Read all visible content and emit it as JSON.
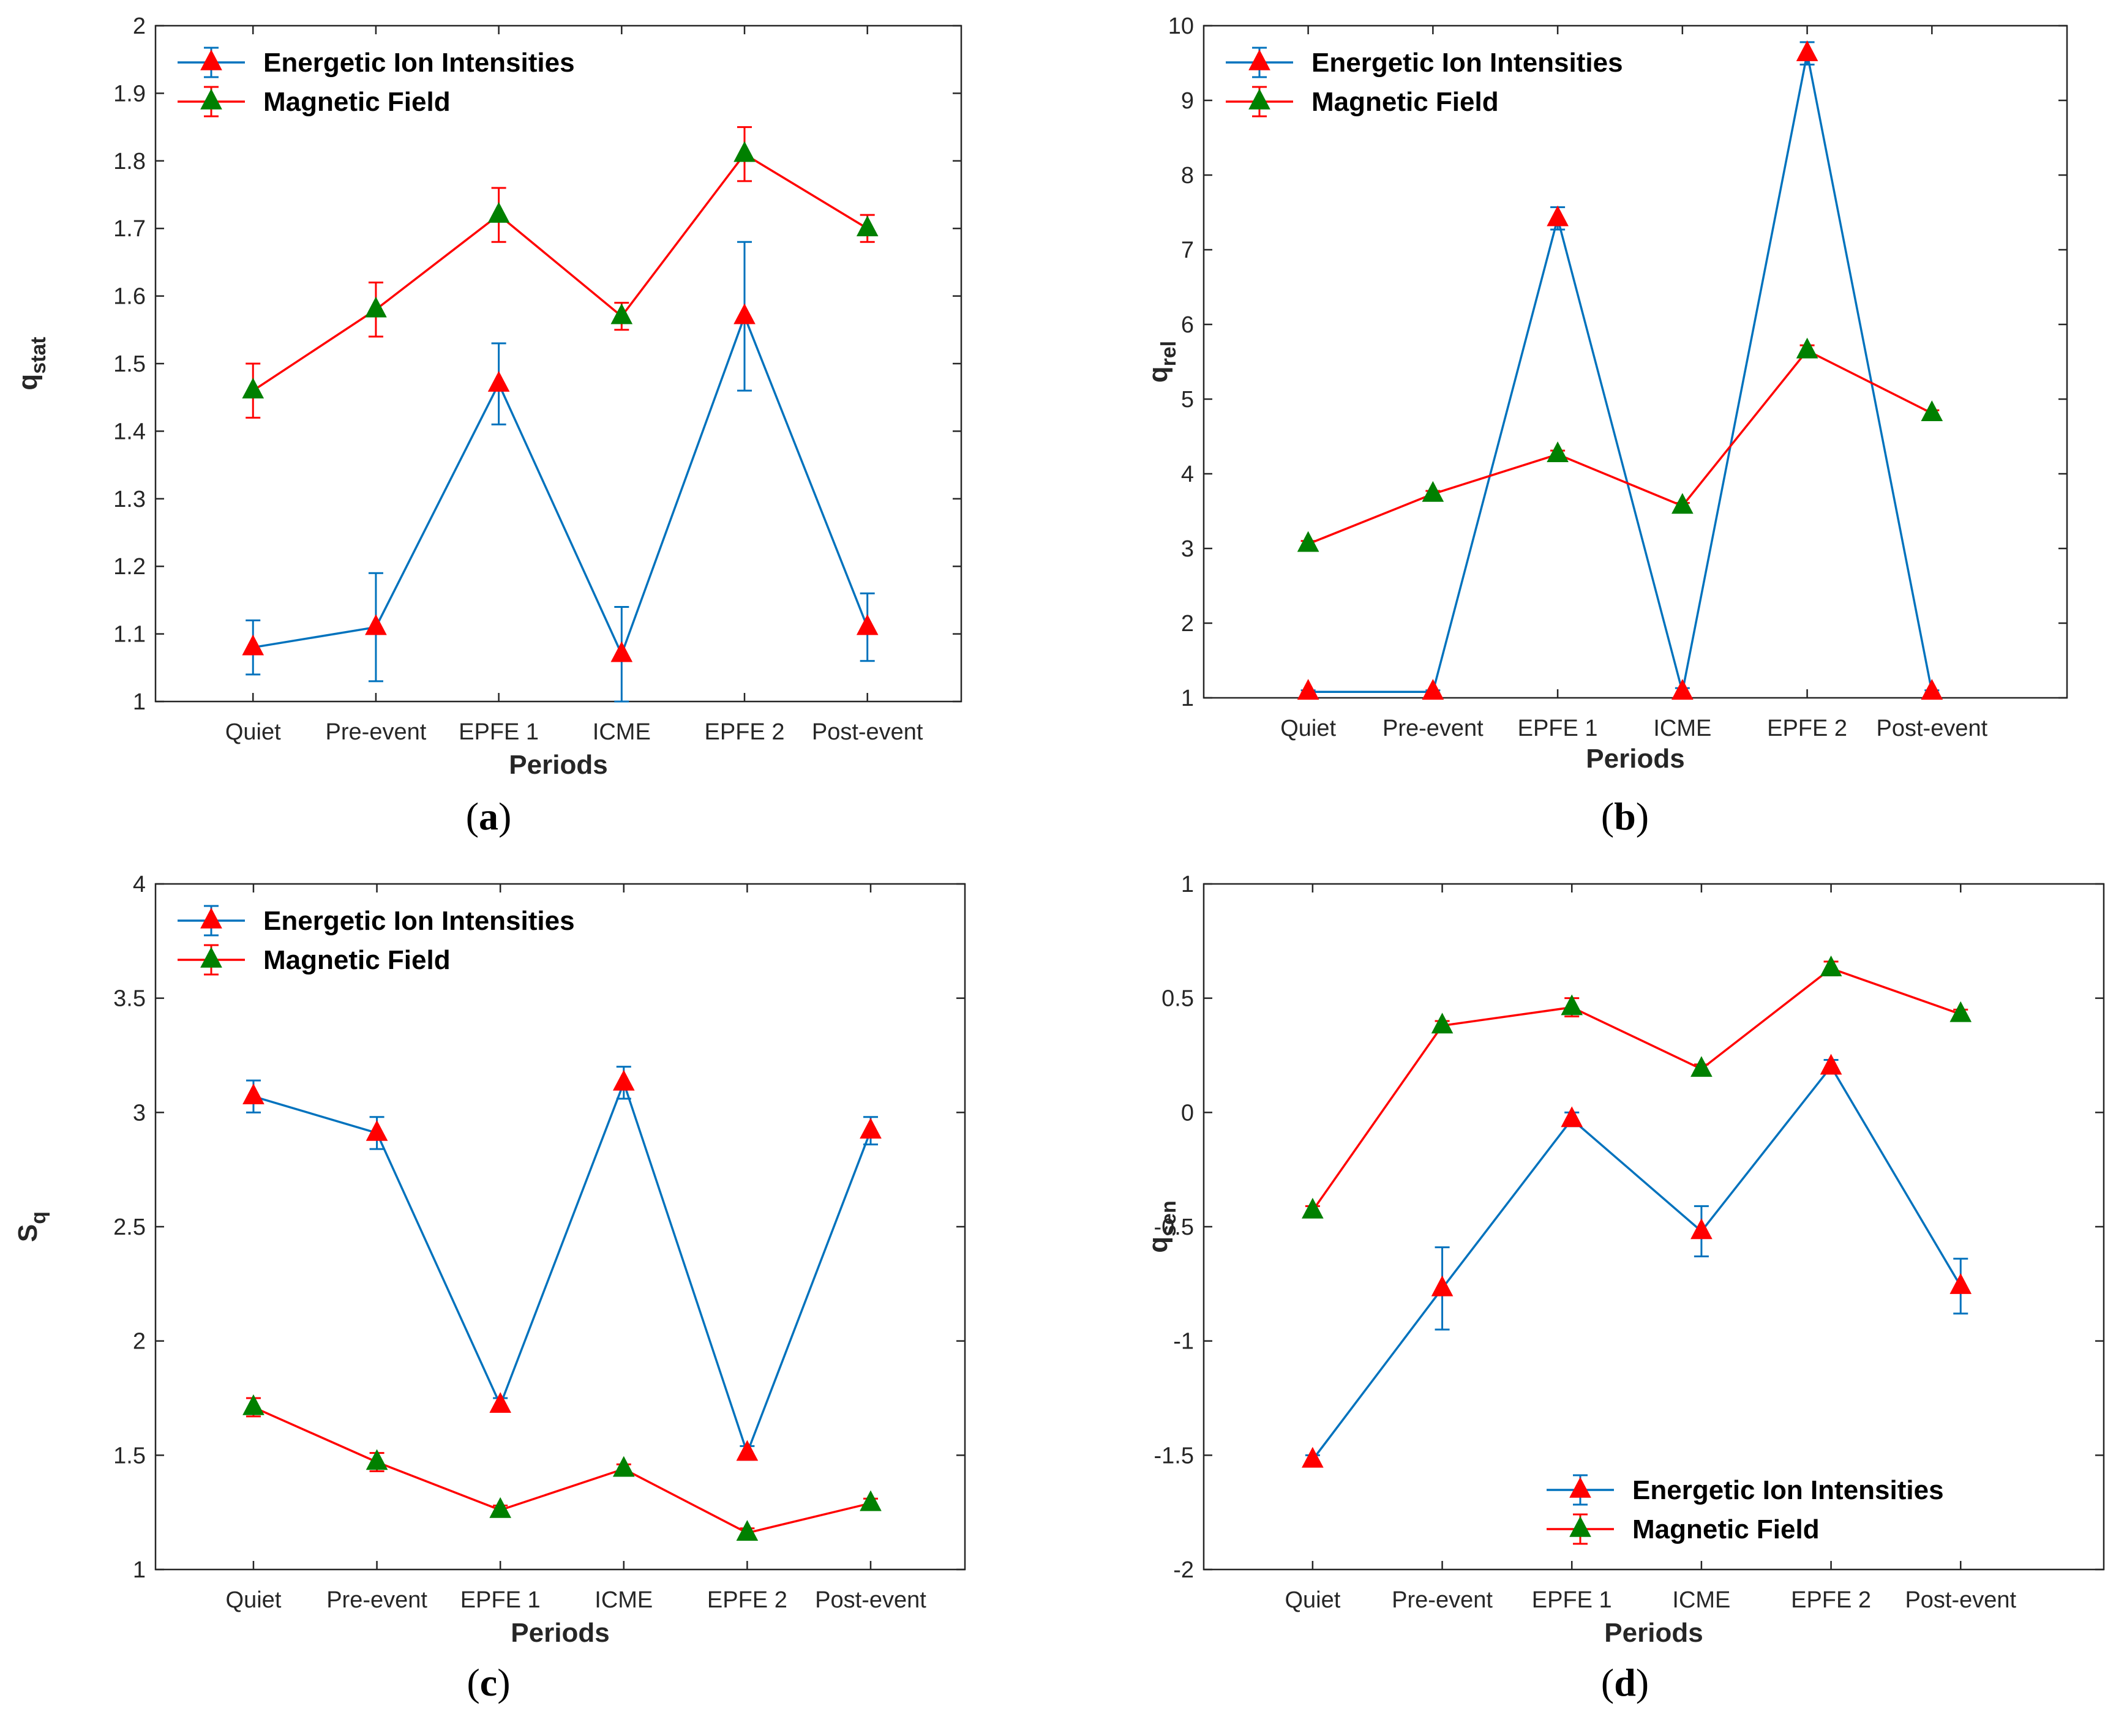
{
  "figure": {
    "colors": {
      "ion_line": "#0072BD",
      "mag_line": "#FF0000",
      "marker_red": "#FF0000",
      "marker_green": "#008000",
      "axis": "#262626",
      "grid": "none"
    }
  },
  "chart_data": [
    {
      "panel": "a",
      "caption_letter": "a",
      "type": "line",
      "title": "",
      "xlabel": "Periods",
      "ylabel": "q",
      "ylabel_sub": "stat",
      "categories": [
        "Quiet",
        "Pre-event",
        "EPFE 1",
        "ICME",
        "EPFE 2",
        "Post-event"
      ],
      "ylim": [
        1,
        2
      ],
      "yticks": [
        1,
        1.1,
        1.2,
        1.3,
        1.4,
        1.5,
        1.6,
        1.7,
        1.8,
        1.9,
        2
      ],
      "ytick_labels": [
        "1",
        "1.1",
        "1.2",
        "1.3",
        "1.4",
        "1.5",
        "1.6",
        "1.7",
        "1.8",
        "1.9",
        "2"
      ],
      "legend_position": "top-left",
      "grid": false,
      "series": [
        {
          "name": "Energetic Ion Intensities",
          "color": "#0072BD",
          "marker": "red-triangle",
          "values": [
            1.08,
            1.11,
            1.47,
            1.07,
            1.57,
            1.11
          ],
          "errors": [
            0.04,
            0.08,
            0.06,
            0.07,
            0.11,
            0.05
          ]
        },
        {
          "name": "Magnetic Field",
          "color": "#FF0000",
          "marker": "green-triangle",
          "values": [
            1.46,
            1.58,
            1.72,
            1.57,
            1.81,
            1.7
          ],
          "errors": [
            0.04,
            0.04,
            0.04,
            0.02,
            0.04,
            0.02
          ]
        }
      ]
    },
    {
      "panel": "b",
      "caption_letter": "b",
      "type": "line",
      "title": "",
      "xlabel": "Periods",
      "ylabel": "q",
      "ylabel_sub": "rel",
      "categories": [
        "Quiet",
        "Pre-event",
        "EPFE 1",
        "ICME",
        "EPFE 2",
        "Post-event"
      ],
      "ylim": [
        1,
        10
      ],
      "yticks": [
        1,
        2,
        3,
        4,
        5,
        6,
        7,
        8,
        9,
        10
      ],
      "ytick_labels": [
        "1",
        "2",
        "3",
        "4",
        "5",
        "6",
        "7",
        "8",
        "9",
        "10"
      ],
      "legend_position": "top-left",
      "grid": false,
      "series": [
        {
          "name": "Energetic Ion Intensities",
          "color": "#0072BD",
          "marker": "red-triangle",
          "values": [
            1.08,
            1.08,
            7.42,
            1.08,
            9.63,
            1.08
          ],
          "errors": [
            0.02,
            0.02,
            0.15,
            0.05,
            0.15,
            0.02
          ]
        },
        {
          "name": "Magnetic Field",
          "color": "#FF0000",
          "marker": "green-triangle",
          "values": [
            3.06,
            3.73,
            4.26,
            3.57,
            5.65,
            4.81
          ],
          "errors": [
            0.04,
            0.04,
            0.05,
            0.04,
            0.07,
            0.04
          ]
        }
      ]
    },
    {
      "panel": "c",
      "caption_letter": "c",
      "type": "line",
      "title": "",
      "xlabel": "Periods",
      "ylabel": "S",
      "ylabel_sub": "q",
      "categories": [
        "Quiet",
        "Pre-event",
        "EPFE 1",
        "ICME",
        "EPFE 2",
        "Post-event"
      ],
      "ylim": [
        1,
        4
      ],
      "yticks": [
        1,
        1.5,
        2,
        2.5,
        3,
        3.5,
        4
      ],
      "ytick_labels": [
        "1",
        "1.5",
        "2",
        "2.5",
        "3",
        "3.5",
        "4"
      ],
      "legend_position": "top-left",
      "grid": false,
      "series": [
        {
          "name": "Energetic Ion Intensities",
          "color": "#0072BD",
          "marker": "red-triangle",
          "values": [
            3.07,
            2.91,
            1.72,
            3.13,
            1.51,
            2.92
          ],
          "errors": [
            0.07,
            0.07,
            0.03,
            0.07,
            0.03,
            0.06
          ]
        },
        {
          "name": "Magnetic Field",
          "color": "#FF0000",
          "marker": "green-triangle",
          "values": [
            1.71,
            1.47,
            1.26,
            1.44,
            1.16,
            1.29
          ],
          "errors": [
            0.04,
            0.04,
            0.02,
            0.02,
            0.02,
            0.02
          ]
        }
      ]
    },
    {
      "panel": "d",
      "caption_letter": "d",
      "type": "line",
      "title": "",
      "xlabel": "Periods",
      "ylabel": "q",
      "ylabel_sub": "sen",
      "categories": [
        "Quiet",
        "Pre-event",
        "EPFE 1",
        "ICME",
        "EPFE 2",
        "Post-event"
      ],
      "ylim": [
        -2,
        1
      ],
      "yticks": [
        -2,
        -1.5,
        -1,
        -0.5,
        0,
        0.5,
        1
      ],
      "ytick_labels": [
        "-2",
        "-1.5",
        "-1",
        "-0.5",
        "0",
        "0.5",
        "1"
      ],
      "legend_position": "bottom-right",
      "grid": false,
      "series": [
        {
          "name": "Energetic Ion Intensities",
          "color": "#0072BD",
          "marker": "red-triangle",
          "values": [
            -1.52,
            -0.77,
            -0.03,
            -0.52,
            0.2,
            -0.76
          ],
          "errors": [
            0.02,
            0.18,
            0.03,
            0.11,
            0.03,
            0.12
          ]
        },
        {
          "name": "Magnetic Field",
          "color": "#FF0000",
          "marker": "green-triangle",
          "values": [
            -0.43,
            0.38,
            0.46,
            0.19,
            0.63,
            0.43
          ],
          "errors": [
            0.02,
            0.02,
            0.04,
            0.02,
            0.03,
            0.02
          ]
        }
      ]
    }
  ]
}
